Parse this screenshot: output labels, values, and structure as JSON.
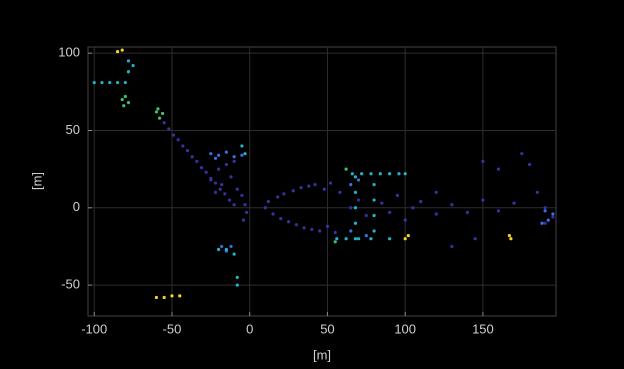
{
  "chart_data": {
    "type": "scatter",
    "xlabel": "[m]",
    "ylabel": "[m]",
    "xlim": [
      -104,
      197
    ],
    "ylim": [
      -70,
      104
    ],
    "xticks": [
      -100,
      -50,
      0,
      50,
      100,
      150
    ],
    "yticks": [
      -50,
      0,
      50,
      100
    ],
    "grid": true,
    "series": [
      {
        "color": "#3d2fa0",
        "x": [
          -55,
          -52,
          -49,
          -46,
          -43,
          -40,
          -37,
          -34,
          -31,
          -28,
          -25,
          -22,
          -19,
          -16,
          -13,
          -10,
          -20,
          -15,
          -10,
          -25,
          -18,
          -12,
          -8,
          -5,
          -22,
          -3,
          -2,
          -4,
          10,
          12,
          15,
          18,
          20,
          22,
          25,
          28,
          30,
          33,
          35,
          38,
          40,
          42,
          45,
          48,
          50,
          52,
          55,
          58,
          110,
          120,
          130,
          140,
          150,
          160,
          170,
          150,
          160,
          175,
          180,
          185,
          190,
          190,
          195,
          145,
          130,
          120,
          65,
          70,
          75,
          85,
          90,
          95,
          100,
          105
        ],
        "y": [
          55,
          51,
          47,
          44,
          40,
          37,
          33,
          30,
          26,
          23,
          19,
          16,
          12,
          9,
          5,
          2,
          25,
          28,
          30,
          18,
          15,
          20,
          12,
          8,
          10,
          2,
          -3,
          -8,
          0,
          4,
          -4,
          7,
          -7,
          9,
          -9,
          11,
          -11,
          13,
          -13,
          14,
          -14,
          15,
          -15,
          12,
          -12,
          16,
          -16,
          10,
          4,
          -4,
          2,
          -3,
          5,
          -2,
          3,
          30,
          25,
          35,
          28,
          10,
          0,
          -10,
          -6,
          -20,
          -25,
          10,
          0,
          5,
          -5,
          3,
          -3,
          8,
          -8,
          0
        ]
      },
      {
        "color": "#3a6fe0",
        "x": [
          -25,
          -20,
          -15,
          -10,
          -5,
          -22,
          -18,
          -15,
          -12,
          65,
          65,
          70,
          75,
          195,
          192,
          190,
          188
        ],
        "y": [
          35,
          34,
          36,
          33,
          34,
          32,
          -25,
          -28,
          -25,
          15,
          -15,
          18,
          -18,
          -4,
          -8,
          -2,
          -10
        ]
      },
      {
        "color": "#22b3c8",
        "x": [
          66,
          72,
          78,
          84,
          90,
          96,
          100,
          68,
          68,
          68,
          68,
          68,
          80,
          80,
          80,
          80,
          56,
          62,
          70,
          78,
          90,
          -100,
          -95,
          -90,
          -85,
          -80,
          -78,
          -78,
          -75,
          -20,
          -15,
          -10,
          -8,
          -8,
          -5,
          -3
        ],
        "y": [
          22,
          22,
          22,
          22,
          22,
          22,
          22,
          20,
          10,
          0,
          -10,
          -20,
          15,
          5,
          -5,
          -15,
          -20,
          -20,
          -20,
          -20,
          -20,
          81,
          81,
          81,
          81,
          81,
          88,
          95,
          92,
          -27,
          -27,
          -30,
          -45,
          -50,
          40,
          35
        ]
      },
      {
        "color": "#40c070",
        "x": [
          -82,
          -80,
          -78,
          -81,
          -60,
          -58,
          -56,
          -59,
          62,
          55
        ],
        "y": [
          70,
          72,
          68,
          66,
          62,
          58,
          61,
          64,
          25,
          -22
        ]
      },
      {
        "color": "#f5d524",
        "x": [
          100,
          102,
          167,
          168,
          -50,
          -55,
          -45,
          -60,
          -82,
          -85
        ],
        "y": [
          -20,
          -18,
          -18,
          -20,
          -57,
          -58,
          -57,
          -58,
          102,
          101
        ]
      }
    ]
  }
}
